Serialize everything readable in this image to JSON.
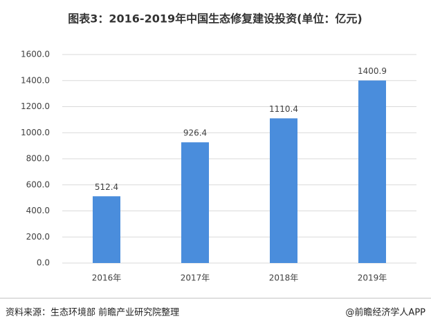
{
  "chart_data": {
    "type": "bar",
    "title": "图表3：2016-2019年中国生态修复建设投资(单位：亿元)",
    "categories": [
      "2016年",
      "2017年",
      "2018年",
      "2019年"
    ],
    "values": [
      512.4,
      926.4,
      1110.4,
      1400.9
    ],
    "color": "#4a8ddc",
    "ylim": [
      0,
      1600
    ],
    "yticks": [
      {
        "value": 0,
        "label": "0.0"
      },
      {
        "value": 200,
        "label": "200.0"
      },
      {
        "value": 400,
        "label": "400.0"
      },
      {
        "value": 600,
        "label": "600.0"
      },
      {
        "value": 800,
        "label": "800.0"
      },
      {
        "value": 1000,
        "label": "1000.0"
      },
      {
        "value": 1200,
        "label": "1200.0"
      },
      {
        "value": 1400,
        "label": "1400.0"
      },
      {
        "value": 1600,
        "label": "1600.0"
      }
    ],
    "grid": true,
    "source": "资料来源：生态环境部 前瞻产业研究院整理",
    "credit": "@前瞻经济学人APP"
  }
}
